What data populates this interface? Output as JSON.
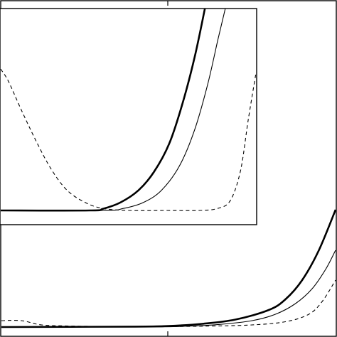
{
  "chart_data": [
    {
      "type": "line",
      "panel": "main",
      "title": "",
      "xlabel": "",
      "ylabel": "",
      "xlim": [
        0,
        1
      ],
      "ylim": [
        0,
        1
      ],
      "grid": false,
      "legend": "none",
      "series": [
        {
          "style": "thick",
          "x": [
            0.0,
            0.4,
            0.5,
            0.6,
            0.7,
            0.8,
            0.85,
            0.9,
            0.95,
            1.0
          ],
          "y": [
            0.0,
            0.002,
            0.005,
            0.015,
            0.035,
            0.08,
            0.13,
            0.22,
            0.36,
            0.55
          ]
        },
        {
          "style": "thin",
          "x": [
            0.0,
            0.45,
            0.55,
            0.65,
            0.75,
            0.82,
            0.88,
            0.93,
            0.97,
            1.0
          ],
          "y": [
            0.0,
            0.001,
            0.004,
            0.012,
            0.03,
            0.06,
            0.11,
            0.18,
            0.27,
            0.36
          ]
        },
        {
          "style": "dashed",
          "x": [
            0.0,
            0.06,
            0.12,
            0.2,
            0.3,
            0.45,
            0.6,
            0.75,
            0.85,
            0.92,
            0.96,
            1.0
          ],
          "y": [
            0.03,
            0.03,
            0.01,
            0.005,
            0.003,
            0.002,
            0.004,
            0.01,
            0.025,
            0.06,
            0.12,
            0.22
          ]
        }
      ]
    },
    {
      "type": "line",
      "panel": "inset",
      "title": "",
      "xlabel": "",
      "ylabel": "",
      "xlim": [
        0,
        1
      ],
      "ylim": [
        0,
        1
      ],
      "grid": false,
      "legend": "none",
      "series": [
        {
          "style": "thick",
          "x": [
            0.0,
            0.35,
            0.4,
            0.47,
            0.54,
            0.6,
            0.66,
            0.71,
            0.76,
            0.8
          ],
          "y": [
            0.0,
            0.0,
            0.008,
            0.04,
            0.1,
            0.19,
            0.33,
            0.52,
            0.76,
            1.0
          ]
        },
        {
          "style": "thin",
          "x": [
            0.0,
            0.4,
            0.48,
            0.56,
            0.63,
            0.7,
            0.76,
            0.81,
            0.85,
            0.88
          ],
          "y": [
            0.0,
            0.0,
            0.01,
            0.04,
            0.1,
            0.22,
            0.4,
            0.62,
            0.84,
            1.0
          ]
        },
        {
          "style": "dashed",
          "x": [
            0.0,
            0.03,
            0.08,
            0.14,
            0.2,
            0.26,
            0.33,
            0.4,
            0.5,
            0.65,
            0.78,
            0.85,
            0.9,
            0.94,
            0.97,
            1.0
          ],
          "y": [
            0.7,
            0.64,
            0.5,
            0.34,
            0.2,
            0.1,
            0.04,
            0.01,
            0.0,
            0.0,
            0.0,
            0.01,
            0.05,
            0.2,
            0.45,
            0.68
          ]
        }
      ]
    }
  ]
}
